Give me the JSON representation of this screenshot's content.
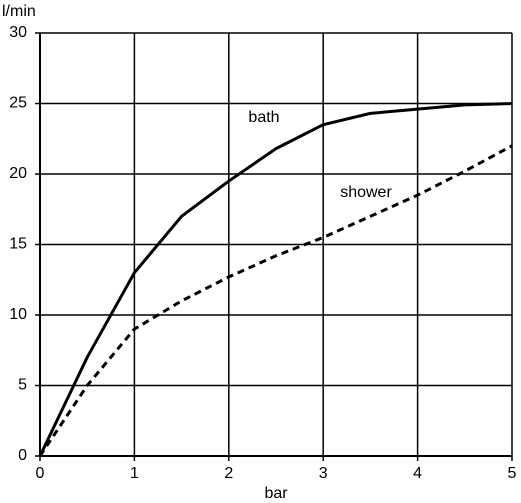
{
  "chart_data": {
    "type": "line",
    "y_label": "l/min",
    "x_label": "bar",
    "x": [
      0,
      0.5,
      1,
      1.5,
      2,
      2.5,
      3,
      3.5,
      4,
      4.5,
      5
    ],
    "series": [
      {
        "name": "bath",
        "color": "#000000",
        "dash": "solid",
        "values": [
          0,
          7,
          13,
          17,
          19.5,
          21.8,
          23.5,
          24.3,
          24.6,
          24.9,
          25
        ]
      },
      {
        "name": "shower",
        "color": "#000000",
        "dash": "dashed",
        "values": [
          0,
          5,
          9,
          11,
          12.7,
          14.2,
          15.5,
          17,
          18.5,
          20.2,
          22
        ]
      }
    ],
    "xlim": [
      0,
      5
    ],
    "xticks": [
      0,
      1,
      2,
      3,
      4,
      5
    ],
    "ylim": [
      0,
      30
    ],
    "yticks": [
      0,
      5,
      10,
      15,
      20,
      25,
      30
    ],
    "grid": true
  }
}
